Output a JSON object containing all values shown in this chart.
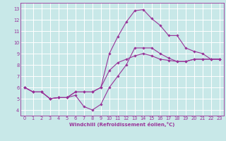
{
  "background_color": "#c8e8e8",
  "grid_color": "#ffffff",
  "line_color": "#993399",
  "marker_color": "#993399",
  "xlabel": "Windchill (Refroidissement éolien,°C)",
  "xlim": [
    -0.5,
    23.5
  ],
  "ylim": [
    3.5,
    13.5
  ],
  "xticks": [
    0,
    1,
    2,
    3,
    4,
    5,
    6,
    7,
    8,
    9,
    10,
    11,
    12,
    13,
    14,
    15,
    16,
    17,
    18,
    19,
    20,
    21,
    22,
    23
  ],
  "yticks": [
    4,
    5,
    6,
    7,
    8,
    9,
    10,
    11,
    12,
    13
  ],
  "curves": [
    {
      "x": [
        0,
        1,
        2,
        3,
        4,
        5,
        6,
        7,
        8,
        9,
        10,
        11,
        12,
        13,
        14,
        15,
        16,
        17,
        18,
        19,
        20,
        21,
        22,
        23
      ],
      "y": [
        6.0,
        5.6,
        5.6,
        5.0,
        5.1,
        5.1,
        5.3,
        4.3,
        4.0,
        4.5,
        6.0,
        7.0,
        8.0,
        9.5,
        9.5,
        9.5,
        9.0,
        8.6,
        8.3,
        8.3,
        8.5,
        8.5,
        8.5,
        8.5
      ]
    },
    {
      "x": [
        0,
        1,
        2,
        3,
        4,
        5,
        6,
        7,
        8,
        9,
        10,
        11,
        12,
        13,
        14,
        15,
        16,
        17,
        18,
        19,
        20,
        21,
        22,
        23
      ],
      "y": [
        6.0,
        5.6,
        5.6,
        5.0,
        5.1,
        5.1,
        5.6,
        5.6,
        5.6,
        6.0,
        9.0,
        10.5,
        11.8,
        12.8,
        12.9,
        12.1,
        11.5,
        10.6,
        10.6,
        9.5,
        9.2,
        9.0,
        8.5,
        8.5
      ]
    },
    {
      "x": [
        0,
        1,
        2,
        3,
        4,
        5,
        6,
        7,
        8,
        9,
        10,
        11,
        12,
        13,
        14,
        15,
        16,
        17,
        18,
        19,
        20,
        21,
        22,
        23
      ],
      "y": [
        6.0,
        5.6,
        5.6,
        5.0,
        5.1,
        5.1,
        5.6,
        5.6,
        5.6,
        6.0,
        7.5,
        8.2,
        8.5,
        8.8,
        9.0,
        8.8,
        8.5,
        8.4,
        8.3,
        8.3,
        8.5,
        8.5,
        8.5,
        8.5
      ]
    }
  ],
  "xlabel_fontsize": 5.0,
  "tick_fontsize": 4.8
}
